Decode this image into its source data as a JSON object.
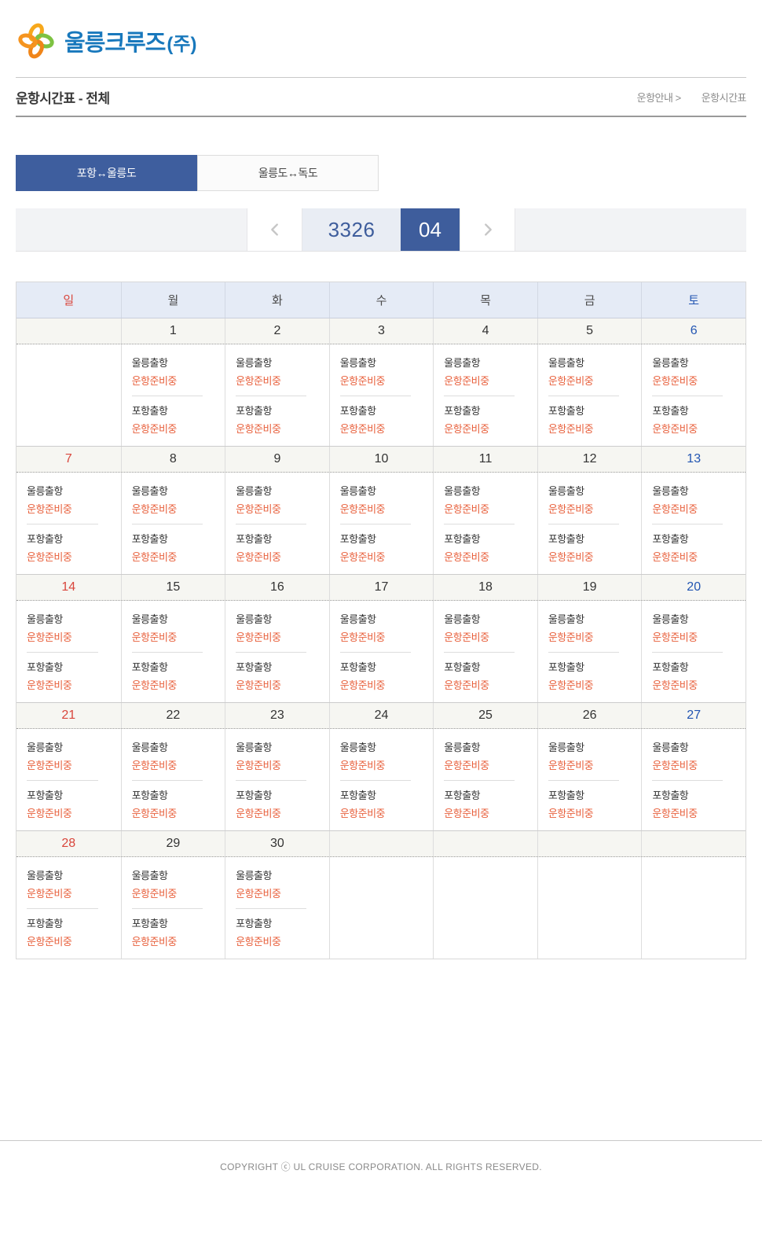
{
  "colors": {
    "accent_blue": "#3e5d9c",
    "logo_blue": "#1878bc",
    "status_orange": "#e8603c",
    "sunday_red": "#d9463c",
    "saturday_blue": "#2255b2",
    "header_bg": "#e5ebf6",
    "number_strip_bg": "#f6f6f2",
    "nav_bar_bg": "#f2f3f5"
  },
  "icons": {
    "logo": "flower-pinwheel",
    "prev": "chevron-left",
    "next": "chevron-right"
  },
  "header": {
    "logo_text": "울릉크루즈",
    "logo_suffix": "(주)"
  },
  "page": {
    "title": "운항시간표 - 전체",
    "breadcrumb_parent": "운항안내 >",
    "breadcrumb_current": "운항시간표"
  },
  "tabs": [
    {
      "label": "포항↔울릉도",
      "active": true
    },
    {
      "label": "울릉도↔독도",
      "active": false
    }
  ],
  "month_nav": {
    "year": "3326",
    "month": "04"
  },
  "calendar": {
    "weekdays": [
      {
        "label": "일",
        "type": "sun"
      },
      {
        "label": "월",
        "type": ""
      },
      {
        "label": "화",
        "type": ""
      },
      {
        "label": "수",
        "type": ""
      },
      {
        "label": "목",
        "type": ""
      },
      {
        "label": "금",
        "type": ""
      },
      {
        "label": "토",
        "type": "sat"
      }
    ],
    "weeks": [
      [
        {
          "day": "",
          "schedules": []
        },
        {
          "day": "1",
          "schedules": [
            {
              "route": "울릉출항",
              "status": "운항준비중"
            },
            {
              "route": "포항출항",
              "status": "운항준비중"
            }
          ]
        },
        {
          "day": "2",
          "schedules": [
            {
              "route": "울릉출항",
              "status": "운항준비중"
            },
            {
              "route": "포항출항",
              "status": "운항준비중"
            }
          ]
        },
        {
          "day": "3",
          "schedules": [
            {
              "route": "울릉출항",
              "status": "운항준비중"
            },
            {
              "route": "포항출항",
              "status": "운항준비중"
            }
          ]
        },
        {
          "day": "4",
          "schedules": [
            {
              "route": "울릉출항",
              "status": "운항준비중"
            },
            {
              "route": "포항출항",
              "status": "운항준비중"
            }
          ]
        },
        {
          "day": "5",
          "schedules": [
            {
              "route": "울릉출항",
              "status": "운항준비중"
            },
            {
              "route": "포항출항",
              "status": "운항준비중"
            }
          ]
        },
        {
          "day": "6",
          "schedules": [
            {
              "route": "울릉출항",
              "status": "운항준비중"
            },
            {
              "route": "포항출항",
              "status": "운항준비중"
            }
          ]
        }
      ],
      [
        {
          "day": "7",
          "schedules": [
            {
              "route": "울릉출항",
              "status": "운항준비중"
            },
            {
              "route": "포항출항",
              "status": "운항준비중"
            }
          ]
        },
        {
          "day": "8",
          "schedules": [
            {
              "route": "울릉출항",
              "status": "운항준비중"
            },
            {
              "route": "포항출항",
              "status": "운항준비중"
            }
          ]
        },
        {
          "day": "9",
          "schedules": [
            {
              "route": "울릉출항",
              "status": "운항준비중"
            },
            {
              "route": "포항출항",
              "status": "운항준비중"
            }
          ]
        },
        {
          "day": "10",
          "schedules": [
            {
              "route": "울릉출항",
              "status": "운항준비중"
            },
            {
              "route": "포항출항",
              "status": "운항준비중"
            }
          ]
        },
        {
          "day": "11",
          "schedules": [
            {
              "route": "울릉출항",
              "status": "운항준비중"
            },
            {
              "route": "포항출항",
              "status": "운항준비중"
            }
          ]
        },
        {
          "day": "12",
          "schedules": [
            {
              "route": "울릉출항",
              "status": "운항준비중"
            },
            {
              "route": "포항출항",
              "status": "운항준비중"
            }
          ]
        },
        {
          "day": "13",
          "schedules": [
            {
              "route": "울릉출항",
              "status": "운항준비중"
            },
            {
              "route": "포항출항",
              "status": "운항준비중"
            }
          ]
        }
      ],
      [
        {
          "day": "14",
          "schedules": [
            {
              "route": "울릉출항",
              "status": "운항준비중"
            },
            {
              "route": "포항출항",
              "status": "운항준비중"
            }
          ]
        },
        {
          "day": "15",
          "schedules": [
            {
              "route": "울릉출항",
              "status": "운항준비중"
            },
            {
              "route": "포항출항",
              "status": "운항준비중"
            }
          ]
        },
        {
          "day": "16",
          "schedules": [
            {
              "route": "울릉출항",
              "status": "운항준비중"
            },
            {
              "route": "포항출항",
              "status": "운항준비중"
            }
          ]
        },
        {
          "day": "17",
          "schedules": [
            {
              "route": "울릉출항",
              "status": "운항준비중"
            },
            {
              "route": "포항출항",
              "status": "운항준비중"
            }
          ]
        },
        {
          "day": "18",
          "schedules": [
            {
              "route": "울릉출항",
              "status": "운항준비중"
            },
            {
              "route": "포항출항",
              "status": "운항준비중"
            }
          ]
        },
        {
          "day": "19",
          "schedules": [
            {
              "route": "울릉출항",
              "status": "운항준비중"
            },
            {
              "route": "포항출항",
              "status": "운항준비중"
            }
          ]
        },
        {
          "day": "20",
          "schedules": [
            {
              "route": "울릉출항",
              "status": "운항준비중"
            },
            {
              "route": "포항출항",
              "status": "운항준비중"
            }
          ]
        }
      ],
      [
        {
          "day": "21",
          "schedules": [
            {
              "route": "울릉출항",
              "status": "운항준비중"
            },
            {
              "route": "포항출항",
              "status": "운항준비중"
            }
          ]
        },
        {
          "day": "22",
          "schedules": [
            {
              "route": "울릉출항",
              "status": "운항준비중"
            },
            {
              "route": "포항출항",
              "status": "운항준비중"
            }
          ]
        },
        {
          "day": "23",
          "schedules": [
            {
              "route": "울릉출항",
              "status": "운항준비중"
            },
            {
              "route": "포항출항",
              "status": "운항준비중"
            }
          ]
        },
        {
          "day": "24",
          "schedules": [
            {
              "route": "울릉출항",
              "status": "운항준비중"
            },
            {
              "route": "포항출항",
              "status": "운항준비중"
            }
          ]
        },
        {
          "day": "25",
          "schedules": [
            {
              "route": "울릉출항",
              "status": "운항준비중"
            },
            {
              "route": "포항출항",
              "status": "운항준비중"
            }
          ]
        },
        {
          "day": "26",
          "schedules": [
            {
              "route": "울릉출항",
              "status": "운항준비중"
            },
            {
              "route": "포항출항",
              "status": "운항준비중"
            }
          ]
        },
        {
          "day": "27",
          "schedules": [
            {
              "route": "울릉출항",
              "status": "운항준비중"
            },
            {
              "route": "포항출항",
              "status": "운항준비중"
            }
          ]
        }
      ],
      [
        {
          "day": "28",
          "schedules": [
            {
              "route": "울릉출항",
              "status": "운항준비중"
            },
            {
              "route": "포항출항",
              "status": "운항준비중"
            }
          ]
        },
        {
          "day": "29",
          "schedules": [
            {
              "route": "울릉출항",
              "status": "운항준비중"
            },
            {
              "route": "포항출항",
              "status": "운항준비중"
            }
          ]
        },
        {
          "day": "30",
          "schedules": [
            {
              "route": "울릉출항",
              "status": "운항준비중"
            },
            {
              "route": "포항출항",
              "status": "운항준비중"
            }
          ]
        },
        {
          "day": "",
          "schedules": []
        },
        {
          "day": "",
          "schedules": []
        },
        {
          "day": "",
          "schedules": []
        },
        {
          "day": "",
          "schedules": []
        }
      ]
    ]
  },
  "footer": {
    "copyright": "COPYRIGHT ⓒ UL CRUISE CORPORATION. ALL RIGHTS RESERVED."
  }
}
